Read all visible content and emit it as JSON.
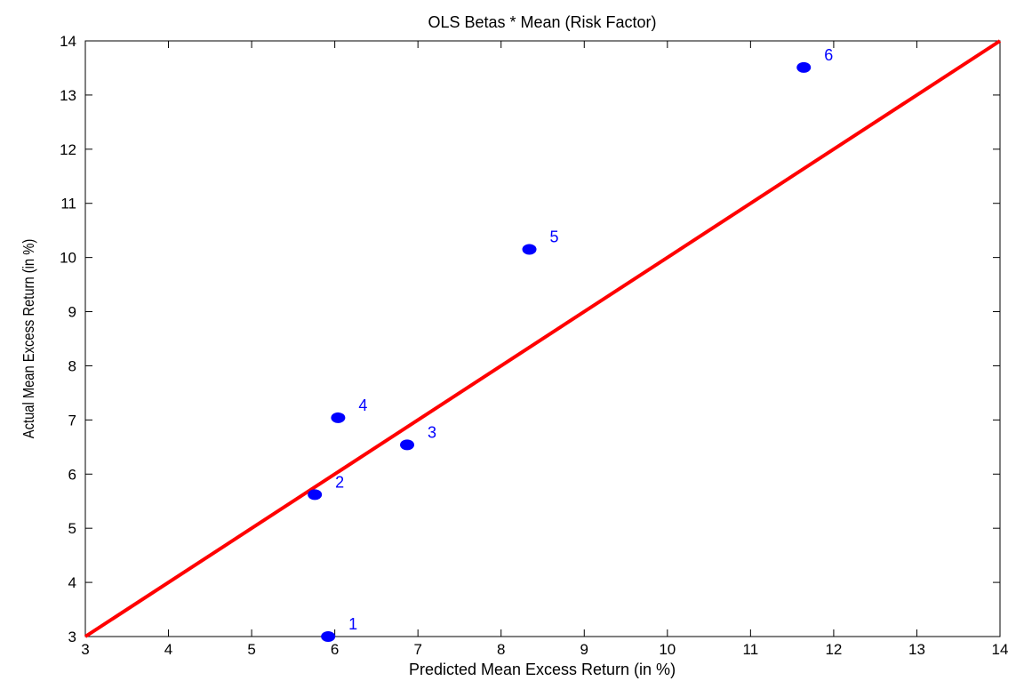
{
  "chart_data": {
    "type": "scatter",
    "title": "OLS Betas * Mean (Risk Factor)",
    "xlabel": "Predicted Mean Excess Return (in %)",
    "ylabel": "Actual Mean Excess Return (in %)",
    "xlim": [
      3,
      14
    ],
    "ylim": [
      3,
      14
    ],
    "xticks": [
      3,
      4,
      5,
      6,
      7,
      8,
      9,
      10,
      11,
      12,
      13,
      14
    ],
    "yticks": [
      3,
      4,
      5,
      6,
      7,
      8,
      9,
      10,
      11,
      12,
      13,
      14
    ],
    "grid": false,
    "colors": {
      "points": "#0000ff",
      "line": "#ff0000",
      "labels": "#0000ff"
    },
    "points": [
      {
        "label": "1",
        "x": 5.92,
        "y": 3.0
      },
      {
        "label": "2",
        "x": 5.76,
        "y": 5.62
      },
      {
        "label": "3",
        "x": 6.87,
        "y": 6.54
      },
      {
        "label": "4",
        "x": 6.04,
        "y": 7.04
      },
      {
        "label": "5",
        "x": 8.34,
        "y": 10.15
      },
      {
        "label": "6",
        "x": 11.64,
        "y": 13.51
      }
    ],
    "reference_line": {
      "from": [
        3,
        3
      ],
      "to": [
        14,
        14
      ]
    }
  }
}
